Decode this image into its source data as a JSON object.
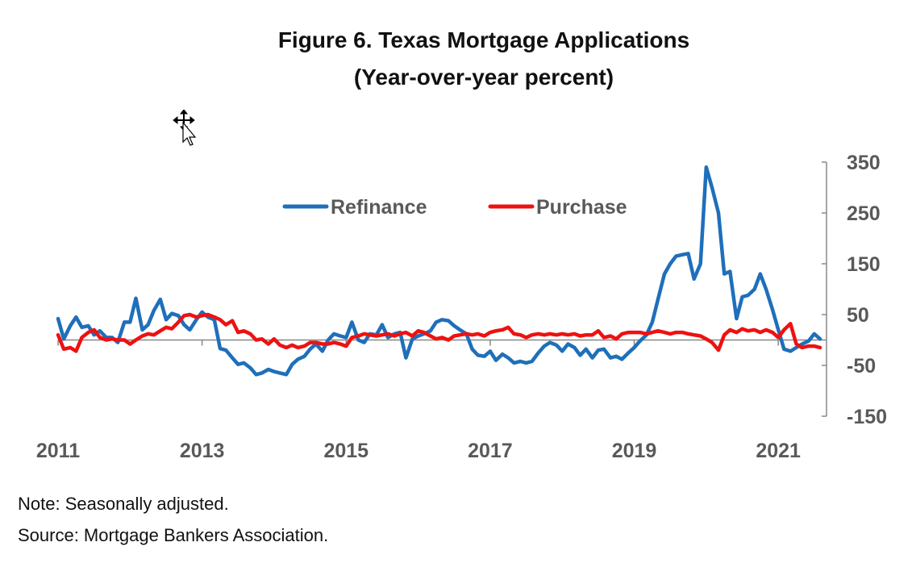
{
  "title": "Figure 6. Texas Mortgage Applications",
  "subtitle": "(Year-over-year percent)",
  "note": "Note: Seasonally adjusted.",
  "source": "Source: Mortgage Bankers Association.",
  "chart_data": {
    "type": "line",
    "title": "Figure 6. Texas Mortgage Applications",
    "subtitle": "(Year-over-year percent)",
    "xlim": [
      2011.0,
      2021.67
    ],
    "ylim": [
      -150,
      350
    ],
    "x_ticks": [
      "2011",
      "2013",
      "2015",
      "2017",
      "2019",
      "2021"
    ],
    "y_ticks": [
      "350",
      "250",
      "150",
      "50",
      "-50",
      "-150"
    ],
    "y_axis_side": "right",
    "legend_position": "top-center",
    "grid": false,
    "colors": {
      "Refinance": "#1f6fba",
      "Purchase": "#ee1111"
    },
    "series": [
      {
        "name": "Refinance",
        "points": [
          [
            2011.0,
            42
          ],
          [
            2011.08,
            2
          ],
          [
            2011.17,
            28
          ],
          [
            2011.25,
            45
          ],
          [
            2011.33,
            25
          ],
          [
            2011.42,
            28
          ],
          [
            2011.5,
            10
          ],
          [
            2011.58,
            18
          ],
          [
            2011.67,
            5
          ],
          [
            2011.75,
            5
          ],
          [
            2011.83,
            -5
          ],
          [
            2011.92,
            35
          ],
          [
            2012.0,
            35
          ],
          [
            2012.08,
            82
          ],
          [
            2012.17,
            20
          ],
          [
            2012.25,
            30
          ],
          [
            2012.33,
            58
          ],
          [
            2012.42,
            80
          ],
          [
            2012.5,
            40
          ],
          [
            2012.58,
            52
          ],
          [
            2012.67,
            48
          ],
          [
            2012.75,
            30
          ],
          [
            2012.83,
            20
          ],
          [
            2012.92,
            40
          ],
          [
            2013.0,
            55
          ],
          [
            2013.08,
            45
          ],
          [
            2013.17,
            40
          ],
          [
            2013.25,
            -17
          ],
          [
            2013.33,
            -20
          ],
          [
            2013.42,
            -35
          ],
          [
            2013.5,
            -48
          ],
          [
            2013.58,
            -45
          ],
          [
            2013.67,
            -55
          ],
          [
            2013.75,
            -68
          ],
          [
            2013.83,
            -65
          ],
          [
            2013.92,
            -58
          ],
          [
            2014.0,
            -62
          ],
          [
            2014.08,
            -65
          ],
          [
            2014.17,
            -68
          ],
          [
            2014.25,
            -48
          ],
          [
            2014.33,
            -38
          ],
          [
            2014.42,
            -32
          ],
          [
            2014.5,
            -18
          ],
          [
            2014.58,
            -8
          ],
          [
            2014.67,
            -22
          ],
          [
            2014.75,
            0
          ],
          [
            2014.83,
            12
          ],
          [
            2014.92,
            8
          ],
          [
            2015.0,
            5
          ],
          [
            2015.08,
            35
          ],
          [
            2015.17,
            0
          ],
          [
            2015.25,
            -5
          ],
          [
            2015.33,
            12
          ],
          [
            2015.42,
            10
          ],
          [
            2015.5,
            30
          ],
          [
            2015.58,
            5
          ],
          [
            2015.67,
            12
          ],
          [
            2015.75,
            15
          ],
          [
            2015.83,
            -35
          ],
          [
            2015.92,
            2
          ],
          [
            2016.0,
            8
          ],
          [
            2016.08,
            12
          ],
          [
            2016.17,
            18
          ],
          [
            2016.25,
            35
          ],
          [
            2016.33,
            40
          ],
          [
            2016.42,
            38
          ],
          [
            2016.5,
            28
          ],
          [
            2016.58,
            20
          ],
          [
            2016.67,
            12
          ],
          [
            2016.75,
            -18
          ],
          [
            2016.83,
            -30
          ],
          [
            2016.92,
            -32
          ],
          [
            2017.0,
            -22
          ],
          [
            2017.08,
            -40
          ],
          [
            2017.17,
            -28
          ],
          [
            2017.25,
            -35
          ],
          [
            2017.33,
            -45
          ],
          [
            2017.42,
            -42
          ],
          [
            2017.5,
            -45
          ],
          [
            2017.58,
            -42
          ],
          [
            2017.67,
            -25
          ],
          [
            2017.75,
            -12
          ],
          [
            2017.83,
            -5
          ],
          [
            2017.92,
            -10
          ],
          [
            2018.0,
            -22
          ],
          [
            2018.08,
            -8
          ],
          [
            2018.17,
            -15
          ],
          [
            2018.25,
            -30
          ],
          [
            2018.33,
            -18
          ],
          [
            2018.42,
            -35
          ],
          [
            2018.5,
            -20
          ],
          [
            2018.58,
            -18
          ],
          [
            2018.67,
            -35
          ],
          [
            2018.75,
            -32
          ],
          [
            2018.83,
            -38
          ],
          [
            2018.92,
            -25
          ],
          [
            2019.0,
            -15
          ],
          [
            2019.08,
            -2
          ],
          [
            2019.17,
            10
          ],
          [
            2019.25,
            35
          ],
          [
            2019.33,
            80
          ],
          [
            2019.42,
            130
          ],
          [
            2019.5,
            150
          ],
          [
            2019.58,
            165
          ],
          [
            2019.67,
            168
          ],
          [
            2019.75,
            170
          ],
          [
            2019.83,
            120
          ],
          [
            2019.92,
            150
          ],
          [
            2020.0,
            340
          ],
          [
            2020.08,
            300
          ],
          [
            2020.17,
            250
          ],
          [
            2020.25,
            130
          ],
          [
            2020.33,
            135
          ],
          [
            2020.42,
            42
          ],
          [
            2020.5,
            85
          ],
          [
            2020.58,
            88
          ],
          [
            2020.67,
            100
          ],
          [
            2020.75,
            130
          ],
          [
            2020.83,
            100
          ],
          [
            2020.92,
            60
          ],
          [
            2021.0,
            20
          ],
          [
            2021.08,
            -18
          ],
          [
            2021.17,
            -22
          ],
          [
            2021.25,
            -15
          ],
          [
            2021.33,
            -8
          ],
          [
            2021.42,
            -2
          ],
          [
            2021.5,
            12
          ],
          [
            2021.58,
            2
          ]
        ]
      },
      {
        "name": "Purchase",
        "points": [
          [
            2011.0,
            10
          ],
          [
            2011.08,
            -18
          ],
          [
            2011.17,
            -15
          ],
          [
            2011.25,
            -22
          ],
          [
            2011.33,
            5
          ],
          [
            2011.42,
            15
          ],
          [
            2011.5,
            20
          ],
          [
            2011.58,
            5
          ],
          [
            2011.67,
            0
          ],
          [
            2011.75,
            2
          ],
          [
            2011.83,
            0
          ],
          [
            2011.92,
            0
          ],
          [
            2012.0,
            -8
          ],
          [
            2012.08,
            0
          ],
          [
            2012.17,
            8
          ],
          [
            2012.25,
            12
          ],
          [
            2012.33,
            10
          ],
          [
            2012.42,
            18
          ],
          [
            2012.5,
            25
          ],
          [
            2012.58,
            22
          ],
          [
            2012.67,
            35
          ],
          [
            2012.75,
            48
          ],
          [
            2012.83,
            50
          ],
          [
            2012.92,
            45
          ],
          [
            2013.0,
            48
          ],
          [
            2013.08,
            50
          ],
          [
            2013.17,
            45
          ],
          [
            2013.25,
            40
          ],
          [
            2013.33,
            30
          ],
          [
            2013.42,
            38
          ],
          [
            2013.5,
            15
          ],
          [
            2013.58,
            18
          ],
          [
            2013.67,
            12
          ],
          [
            2013.75,
            0
          ],
          [
            2013.83,
            2
          ],
          [
            2013.92,
            -8
          ],
          [
            2014.0,
            2
          ],
          [
            2014.08,
            -10
          ],
          [
            2014.17,
            -15
          ],
          [
            2014.25,
            -10
          ],
          [
            2014.33,
            -15
          ],
          [
            2014.42,
            -12
          ],
          [
            2014.5,
            -5
          ],
          [
            2014.58,
            -5
          ],
          [
            2014.67,
            -8
          ],
          [
            2014.75,
            -8
          ],
          [
            2014.83,
            -5
          ],
          [
            2014.92,
            -8
          ],
          [
            2015.0,
            -12
          ],
          [
            2015.08,
            5
          ],
          [
            2015.17,
            8
          ],
          [
            2015.25,
            12
          ],
          [
            2015.33,
            10
          ],
          [
            2015.42,
            8
          ],
          [
            2015.5,
            10
          ],
          [
            2015.58,
            12
          ],
          [
            2015.67,
            8
          ],
          [
            2015.75,
            12
          ],
          [
            2015.83,
            15
          ],
          [
            2015.92,
            8
          ],
          [
            2016.0,
            18
          ],
          [
            2016.08,
            15
          ],
          [
            2016.17,
            8
          ],
          [
            2016.25,
            2
          ],
          [
            2016.33,
            5
          ],
          [
            2016.42,
            0
          ],
          [
            2016.5,
            8
          ],
          [
            2016.58,
            10
          ],
          [
            2016.67,
            12
          ],
          [
            2016.75,
            10
          ],
          [
            2016.83,
            12
          ],
          [
            2016.92,
            8
          ],
          [
            2017.0,
            15
          ],
          [
            2017.08,
            18
          ],
          [
            2017.17,
            20
          ],
          [
            2017.25,
            25
          ],
          [
            2017.33,
            12
          ],
          [
            2017.42,
            10
          ],
          [
            2017.5,
            5
          ],
          [
            2017.58,
            10
          ],
          [
            2017.67,
            12
          ],
          [
            2017.75,
            10
          ],
          [
            2017.83,
            12
          ],
          [
            2017.92,
            10
          ],
          [
            2018.0,
            12
          ],
          [
            2018.08,
            10
          ],
          [
            2018.17,
            12
          ],
          [
            2018.25,
            8
          ],
          [
            2018.33,
            10
          ],
          [
            2018.42,
            10
          ],
          [
            2018.5,
            18
          ],
          [
            2018.58,
            5
          ],
          [
            2018.67,
            8
          ],
          [
            2018.75,
            2
          ],
          [
            2018.83,
            12
          ],
          [
            2018.92,
            15
          ],
          [
            2019.0,
            15
          ],
          [
            2019.08,
            15
          ],
          [
            2019.17,
            12
          ],
          [
            2019.25,
            15
          ],
          [
            2019.33,
            18
          ],
          [
            2019.42,
            15
          ],
          [
            2019.5,
            12
          ],
          [
            2019.58,
            15
          ],
          [
            2019.67,
            15
          ],
          [
            2019.75,
            12
          ],
          [
            2019.83,
            10
          ],
          [
            2019.92,
            8
          ],
          [
            2020.0,
            2
          ],
          [
            2020.08,
            -5
          ],
          [
            2020.17,
            -20
          ],
          [
            2020.25,
            10
          ],
          [
            2020.33,
            20
          ],
          [
            2020.42,
            15
          ],
          [
            2020.5,
            22
          ],
          [
            2020.58,
            18
          ],
          [
            2020.67,
            20
          ],
          [
            2020.75,
            15
          ],
          [
            2020.83,
            20
          ],
          [
            2020.92,
            15
          ],
          [
            2021.0,
            5
          ],
          [
            2021.08,
            20
          ],
          [
            2021.17,
            32
          ],
          [
            2021.25,
            -8
          ],
          [
            2021.33,
            -15
          ],
          [
            2021.42,
            -12
          ],
          [
            2021.5,
            -12
          ],
          [
            2021.58,
            -15
          ]
        ]
      }
    ]
  }
}
